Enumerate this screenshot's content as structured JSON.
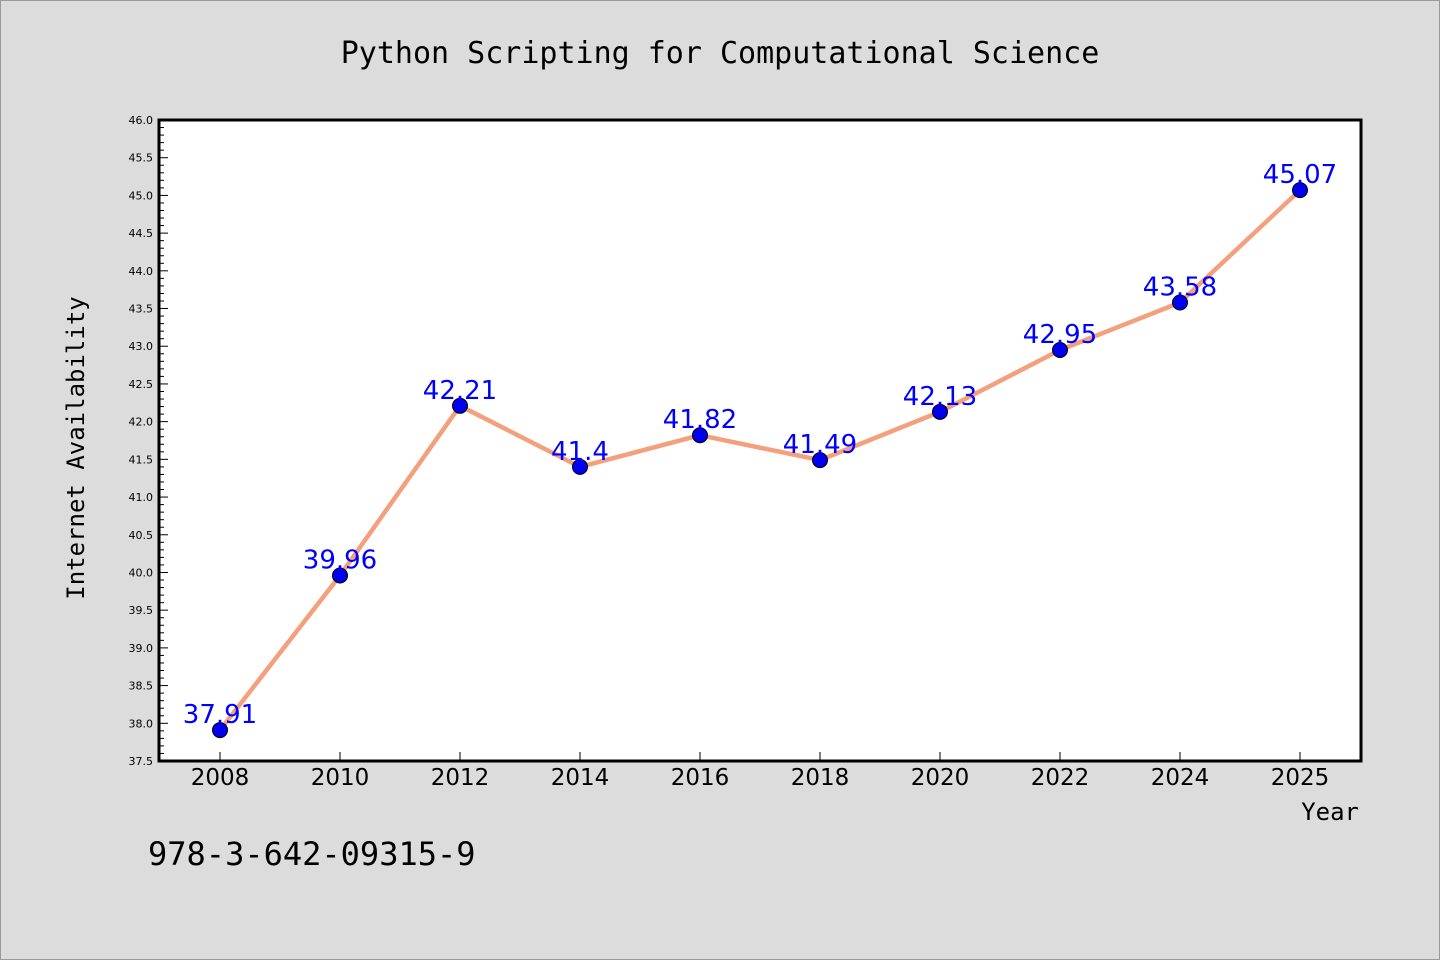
{
  "chart_data": {
    "type": "line",
    "title": "Python Scripting for Computational Science",
    "xlabel": "Year",
    "ylabel": "Internet Availability",
    "x": [
      "2008",
      "2010",
      "2012",
      "2014",
      "2016",
      "2018",
      "2020",
      "2022",
      "2024",
      "2025"
    ],
    "series": [
      {
        "values": [
          37.91,
          39.96,
          42.21,
          41.4,
          41.82,
          41.49,
          42.13,
          42.95,
          43.58,
          45.07
        ],
        "labels": [
          "37.91",
          "39.96",
          "42.21",
          "41.4",
          "41.82",
          "41.49",
          "42.13",
          "42.95",
          "43.58",
          "45.07"
        ],
        "line_color": "#f4a07c",
        "marker_color": "#0000ee",
        "label_color": "#0000ff"
      }
    ],
    "ylim": [
      37.5,
      46.0
    ],
    "yticks": [
      "37.5",
      "38.0",
      "38.5",
      "39.0",
      "39.5",
      "40.0",
      "40.5",
      "41.0",
      "41.5",
      "42.0",
      "42.5",
      "43.0",
      "43.5",
      "44.0",
      "44.5",
      "45.0",
      "45.5",
      "46.0"
    ],
    "grid": false,
    "legend": "none"
  },
  "footer": {
    "isbn": "978-3-642-09315-9"
  },
  "colors": {
    "background": "#dcdcdc",
    "plot_background": "#ffffff",
    "axes": "#000000"
  }
}
